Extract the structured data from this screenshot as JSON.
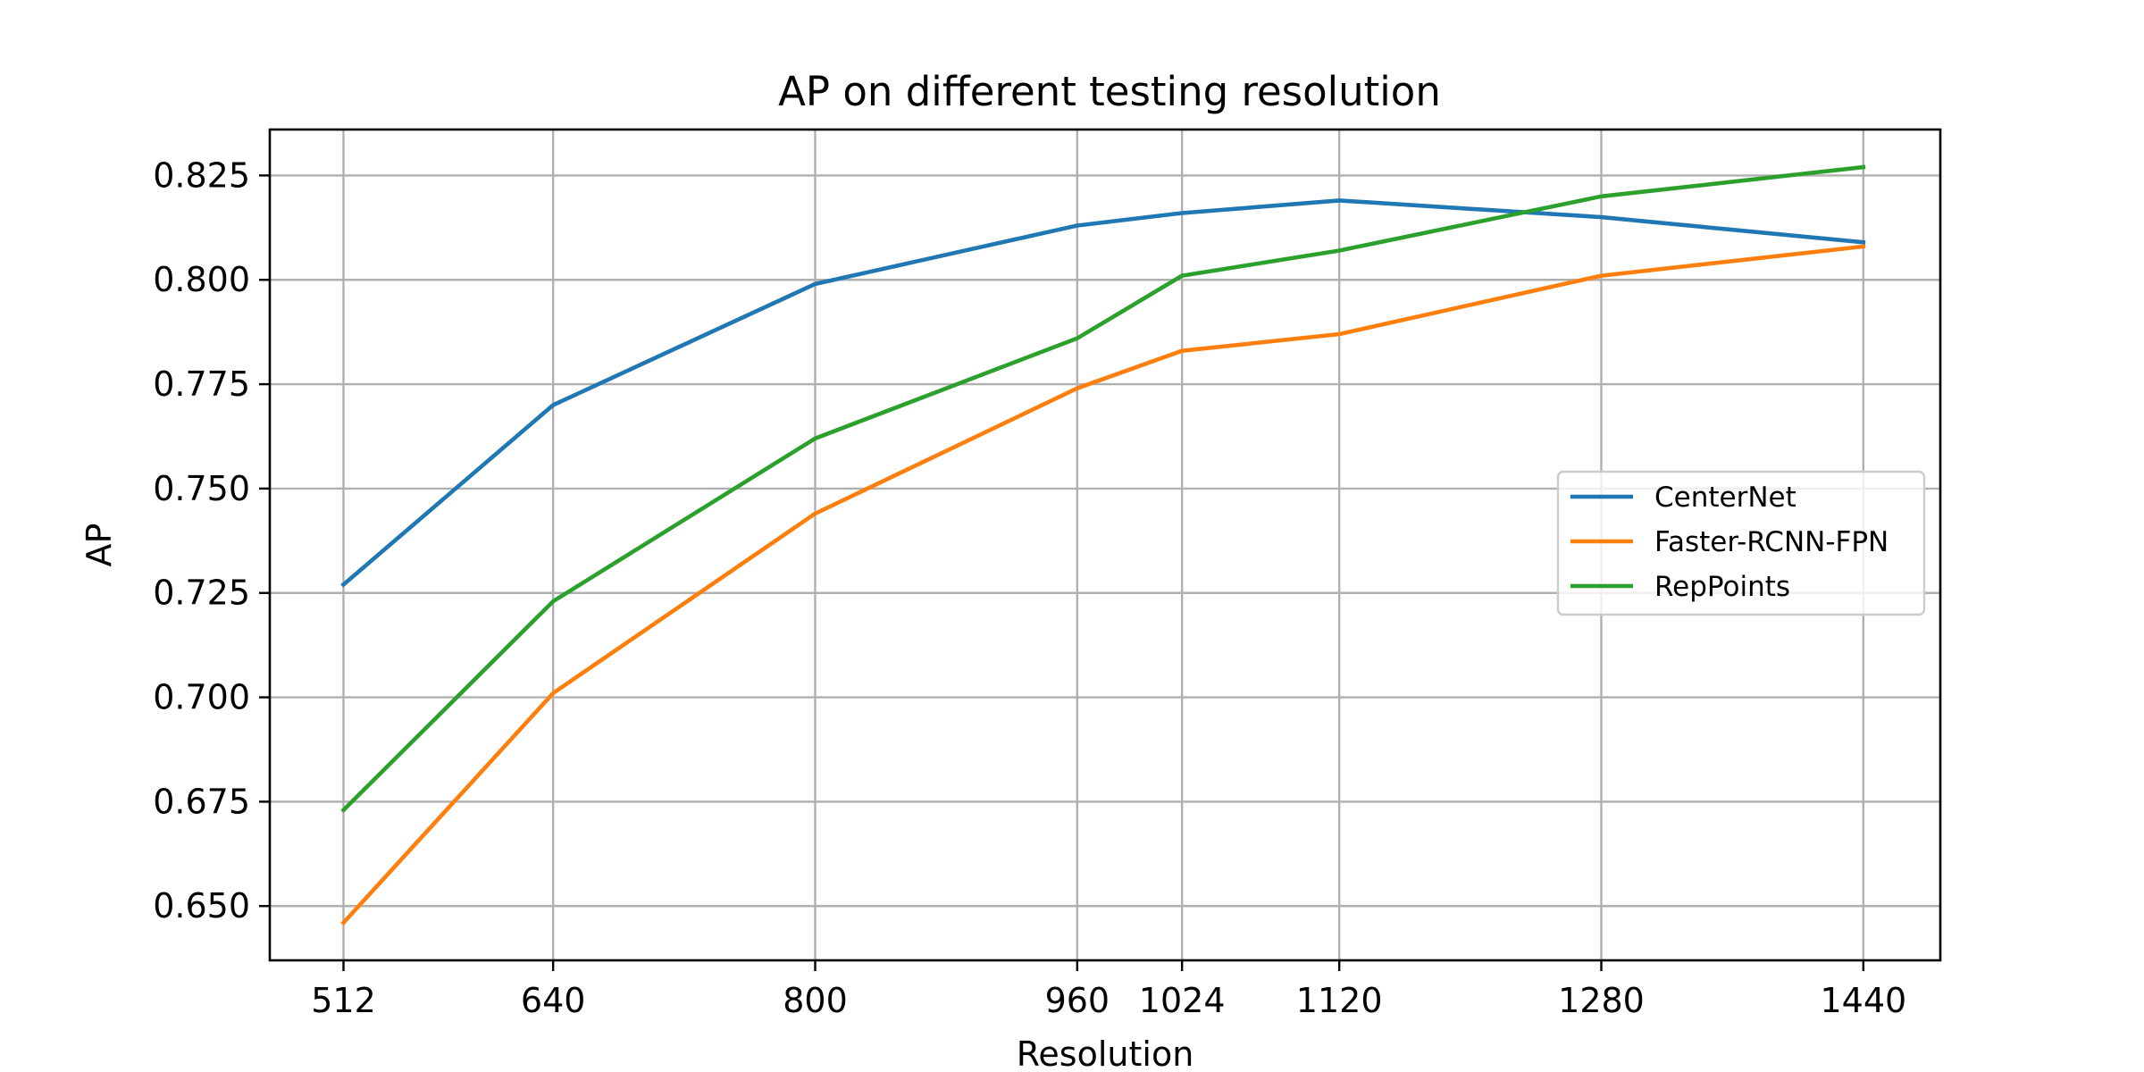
{
  "chart_data": {
    "type": "line",
    "title": "AP on different testing resolution",
    "xlabel": "Resolution",
    "ylabel": "AP",
    "x": [
      512,
      640,
      800,
      960,
      1024,
      1120,
      1280,
      1440
    ],
    "x_ticks": [
      512,
      640,
      800,
      960,
      1024,
      1120,
      1280,
      1440
    ],
    "x_tick_labels": [
      "512",
      "640",
      "800",
      "960",
      "1024",
      "1120",
      "1280",
      "1440"
    ],
    "y_ticks": [
      0.65,
      0.675,
      0.7,
      0.725,
      0.75,
      0.775,
      0.8,
      0.825
    ],
    "y_tick_labels": [
      "0.650",
      "0.675",
      "0.700",
      "0.725",
      "0.750",
      "0.775",
      "0.800",
      "0.825"
    ],
    "xlim": [
      467,
      1487
    ],
    "ylim": [
      0.637,
      0.836
    ],
    "grid": true,
    "legend_position": "center-right",
    "series": [
      {
        "name": "CenterNet",
        "color": "#1f77b4",
        "values": [
          0.727,
          0.77,
          0.799,
          0.813,
          0.816,
          0.819,
          0.815,
          0.809
        ]
      },
      {
        "name": "Faster-RCNN-FPN",
        "color": "#ff7f0e",
        "values": [
          0.646,
          0.701,
          0.744,
          0.774,
          0.783,
          0.787,
          0.801,
          0.808
        ]
      },
      {
        "name": "RepPoints",
        "color": "#2ca02c",
        "values": [
          0.673,
          0.723,
          0.762,
          0.786,
          0.801,
          0.807,
          0.82,
          0.827
        ]
      }
    ]
  }
}
